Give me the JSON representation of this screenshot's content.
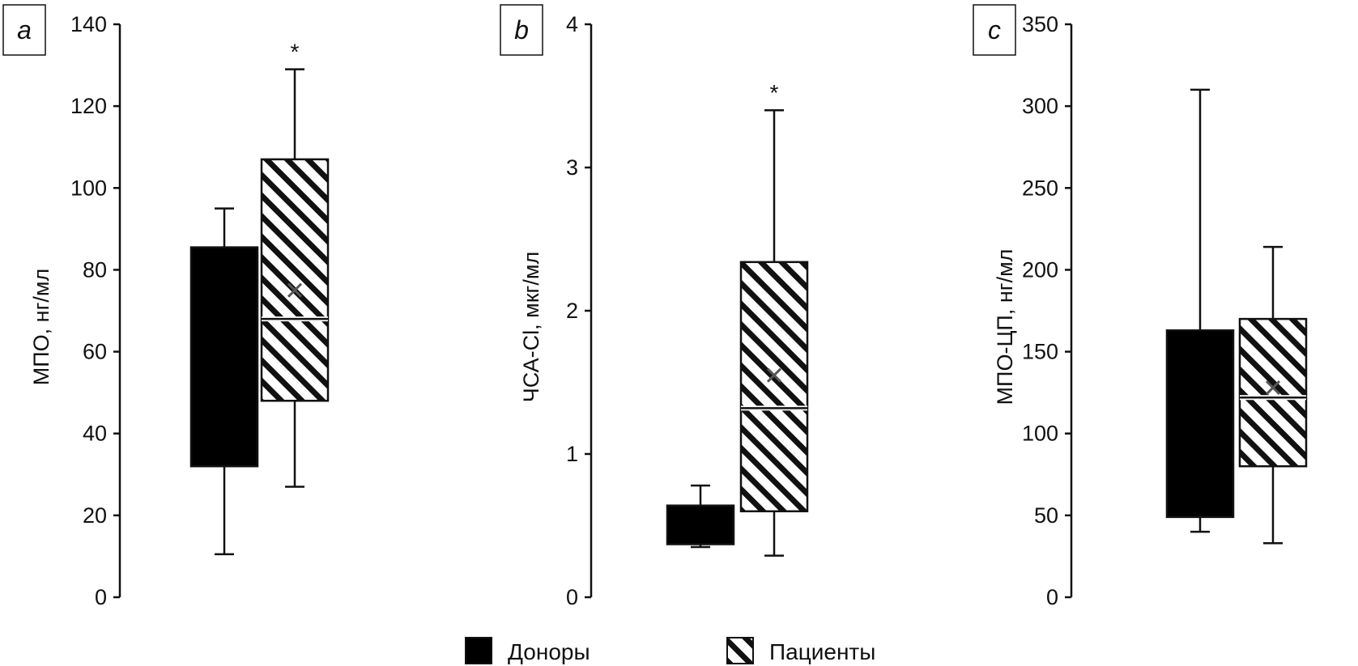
{
  "chart_data": [
    {
      "type": "box",
      "panel_label": "a",
      "ylabel": "МПО, нг/мл",
      "ylim": [
        0,
        140
      ],
      "yticks": [
        0,
        20,
        40,
        60,
        80,
        100,
        120,
        140
      ],
      "tick_labels": [
        "0",
        "20",
        "40",
        "60",
        "80",
        "100",
        "120",
        "140"
      ],
      "grid": false,
      "series": [
        {
          "name": "Доноры",
          "whisker_low": 10.5,
          "q1": 32,
          "median": 32,
          "mean": 32,
          "q3": 85.5,
          "whisker_high": 95,
          "significance": ""
        },
        {
          "name": "Пациенты",
          "whisker_low": 27,
          "q1": 48,
          "median": 68,
          "mean": 75,
          "q3": 107,
          "whisker_high": 129,
          "significance": "*"
        }
      ]
    },
    {
      "type": "box",
      "panel_label": "b",
      "ylabel": "ЧСА-Cl, мкг/мл",
      "ylim": [
        0,
        4
      ],
      "yticks": [
        0,
        1,
        2,
        3,
        4
      ],
      "tick_labels": [
        "0",
        "1",
        "2",
        "3",
        "4"
      ],
      "grid": false,
      "series": [
        {
          "name": "Доноры",
          "whisker_low": 0.35,
          "q1": 0.37,
          "median": 0.5,
          "mean": 0.5,
          "q3": 0.64,
          "whisker_high": 0.78,
          "significance": ""
        },
        {
          "name": "Пациенты",
          "whisker_low": 0.29,
          "q1": 0.6,
          "median": 1.32,
          "mean": 1.55,
          "q3": 2.34,
          "whisker_high": 3.4,
          "significance": "*"
        }
      ]
    },
    {
      "type": "box",
      "panel_label": "c",
      "ylabel": "МПО-ЦП, нг/мл",
      "ylim": [
        0,
        350
      ],
      "yticks": [
        0,
        50,
        100,
        150,
        200,
        250,
        300,
        350
      ],
      "tick_labels": [
        "0",
        "50",
        "100",
        "150",
        "200",
        "250",
        "300",
        "350"
      ],
      "grid": false,
      "series": [
        {
          "name": "Доноры",
          "whisker_low": 40,
          "q1": 49,
          "median": 49,
          "mean": 49,
          "q3": 163,
          "whisker_high": 310,
          "significance": ""
        },
        {
          "name": "Пациенты",
          "whisker_low": 33,
          "q1": 80,
          "median": 122,
          "mean": 128,
          "q3": 170,
          "whisker_high": 214,
          "significance": ""
        }
      ]
    }
  ],
  "legend": {
    "placement": "bottom-center",
    "items": [
      {
        "label": "Доноры",
        "fill": "solid"
      },
      {
        "label": "Пациенты",
        "fill": "hatched"
      }
    ]
  },
  "colors": {
    "ink": "#111111",
    "donor_fill": "#000000",
    "patient_fill": "#ffffff",
    "mean_marker": "#555555"
  }
}
